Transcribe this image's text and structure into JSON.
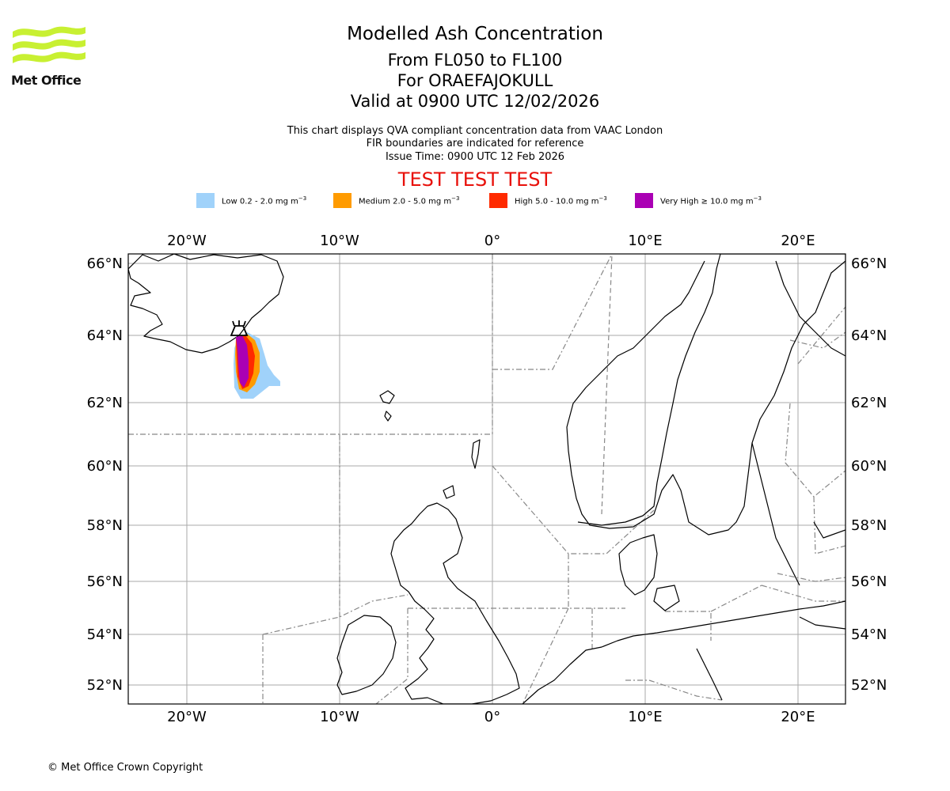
{
  "header": {
    "title": "Modelled Ash Concentration",
    "levels": "From FL050 to FL100",
    "volcano": "For ORAEFAJOKULL",
    "valid": "Valid at 0900 UTC 12/02/2026",
    "desc1": "This chart displays QVA compliant concentration data from VAAC London",
    "desc2": "FIR boundaries are indicated for reference",
    "issue": "Issue Time: 0900 UTC 12 Feb 2026",
    "test": "TEST TEST TEST"
  },
  "logo": {
    "text": "Met Office"
  },
  "legend": [
    {
      "label": "Low 0.2 - 2.0 mg m",
      "color": "#a0d2fa"
    },
    {
      "label": "Medium 2.0 - 5.0 mg m",
      "color": "#ff9b00"
    },
    {
      "label": "High 5.0 - 10.0 mg m",
      "color": "#ff2a00"
    },
    {
      "label": "Very High ≥ 10.0 mg m",
      "color": "#aa00b4"
    }
  ],
  "legend_exp": "−3",
  "axes": {
    "lon_labels": [
      "20°W",
      "10°W",
      "0°",
      "10°E",
      "20°E"
    ],
    "lat_labels": [
      "66°N",
      "64°N",
      "62°N",
      "60°N",
      "58°N",
      "56°N",
      "54°N",
      "52°N"
    ]
  },
  "footer": {
    "copyright": "© Met Office Crown Copyright"
  }
}
